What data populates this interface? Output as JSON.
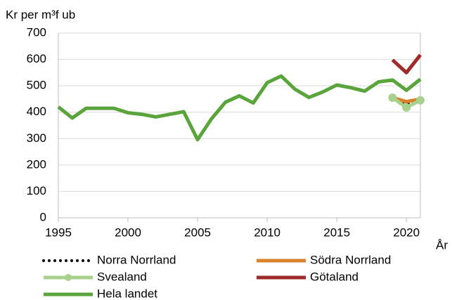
{
  "chart_data": {
    "type": "line",
    "y_label": "Kr per m³f ub",
    "x_label": "År",
    "x": [
      1995,
      1996,
      1997,
      1998,
      1999,
      2000,
      2001,
      2002,
      2003,
      2004,
      2005,
      2006,
      2007,
      2008,
      2009,
      2010,
      2011,
      2012,
      2013,
      2014,
      2015,
      2016,
      2017,
      2018,
      2019,
      2020,
      2021
    ],
    "series": [
      {
        "name": "Norra Norrland",
        "color": "#000000",
        "style": "dotted",
        "values": [
          null,
          null,
          null,
          null,
          null,
          null,
          null,
          null,
          null,
          null,
          null,
          null,
          null,
          null,
          null,
          null,
          null,
          null,
          null,
          null,
          null,
          null,
          null,
          null,
          450,
          430,
          445
        ]
      },
      {
        "name": "Södra Norrland",
        "color": "#d9822b",
        "style": "solid",
        "values": [
          null,
          null,
          null,
          null,
          null,
          null,
          null,
          null,
          null,
          null,
          null,
          null,
          null,
          null,
          null,
          null,
          null,
          null,
          null,
          null,
          null,
          null,
          null,
          null,
          455,
          440,
          450
        ]
      },
      {
        "name": "Svealand",
        "color": "#a9d18e",
        "style": "solid",
        "marker": true,
        "values": [
          null,
          null,
          null,
          null,
          null,
          null,
          null,
          null,
          null,
          null,
          null,
          null,
          null,
          null,
          null,
          null,
          null,
          null,
          null,
          null,
          null,
          null,
          null,
          null,
          455,
          418,
          445
        ]
      },
      {
        "name": "Götaland",
        "color": "#9e2a2b",
        "style": "solid",
        "values": [
          null,
          null,
          null,
          null,
          null,
          null,
          null,
          null,
          null,
          null,
          null,
          null,
          null,
          null,
          null,
          null,
          null,
          null,
          null,
          null,
          null,
          null,
          null,
          null,
          598,
          550,
          617
        ]
      },
      {
        "name": "Hela landet",
        "color": "#5aa43c",
        "style": "solid",
        "values": [
          420,
          378,
          415,
          415,
          415,
          398,
          392,
          382,
          392,
          402,
          296,
          375,
          438,
          462,
          435,
          512,
          537,
          487,
          456,
          477,
          503,
          493,
          480,
          515,
          522,
          483,
          525
        ]
      }
    ],
    "xlim": [
      1995,
      2021
    ],
    "xticks": [
      1995,
      2000,
      2005,
      2010,
      2015,
      2020
    ],
    "ylim": [
      0,
      700
    ],
    "yticks": [
      0,
      100,
      200,
      300,
      400,
      500,
      600,
      700
    ],
    "grid": true
  }
}
